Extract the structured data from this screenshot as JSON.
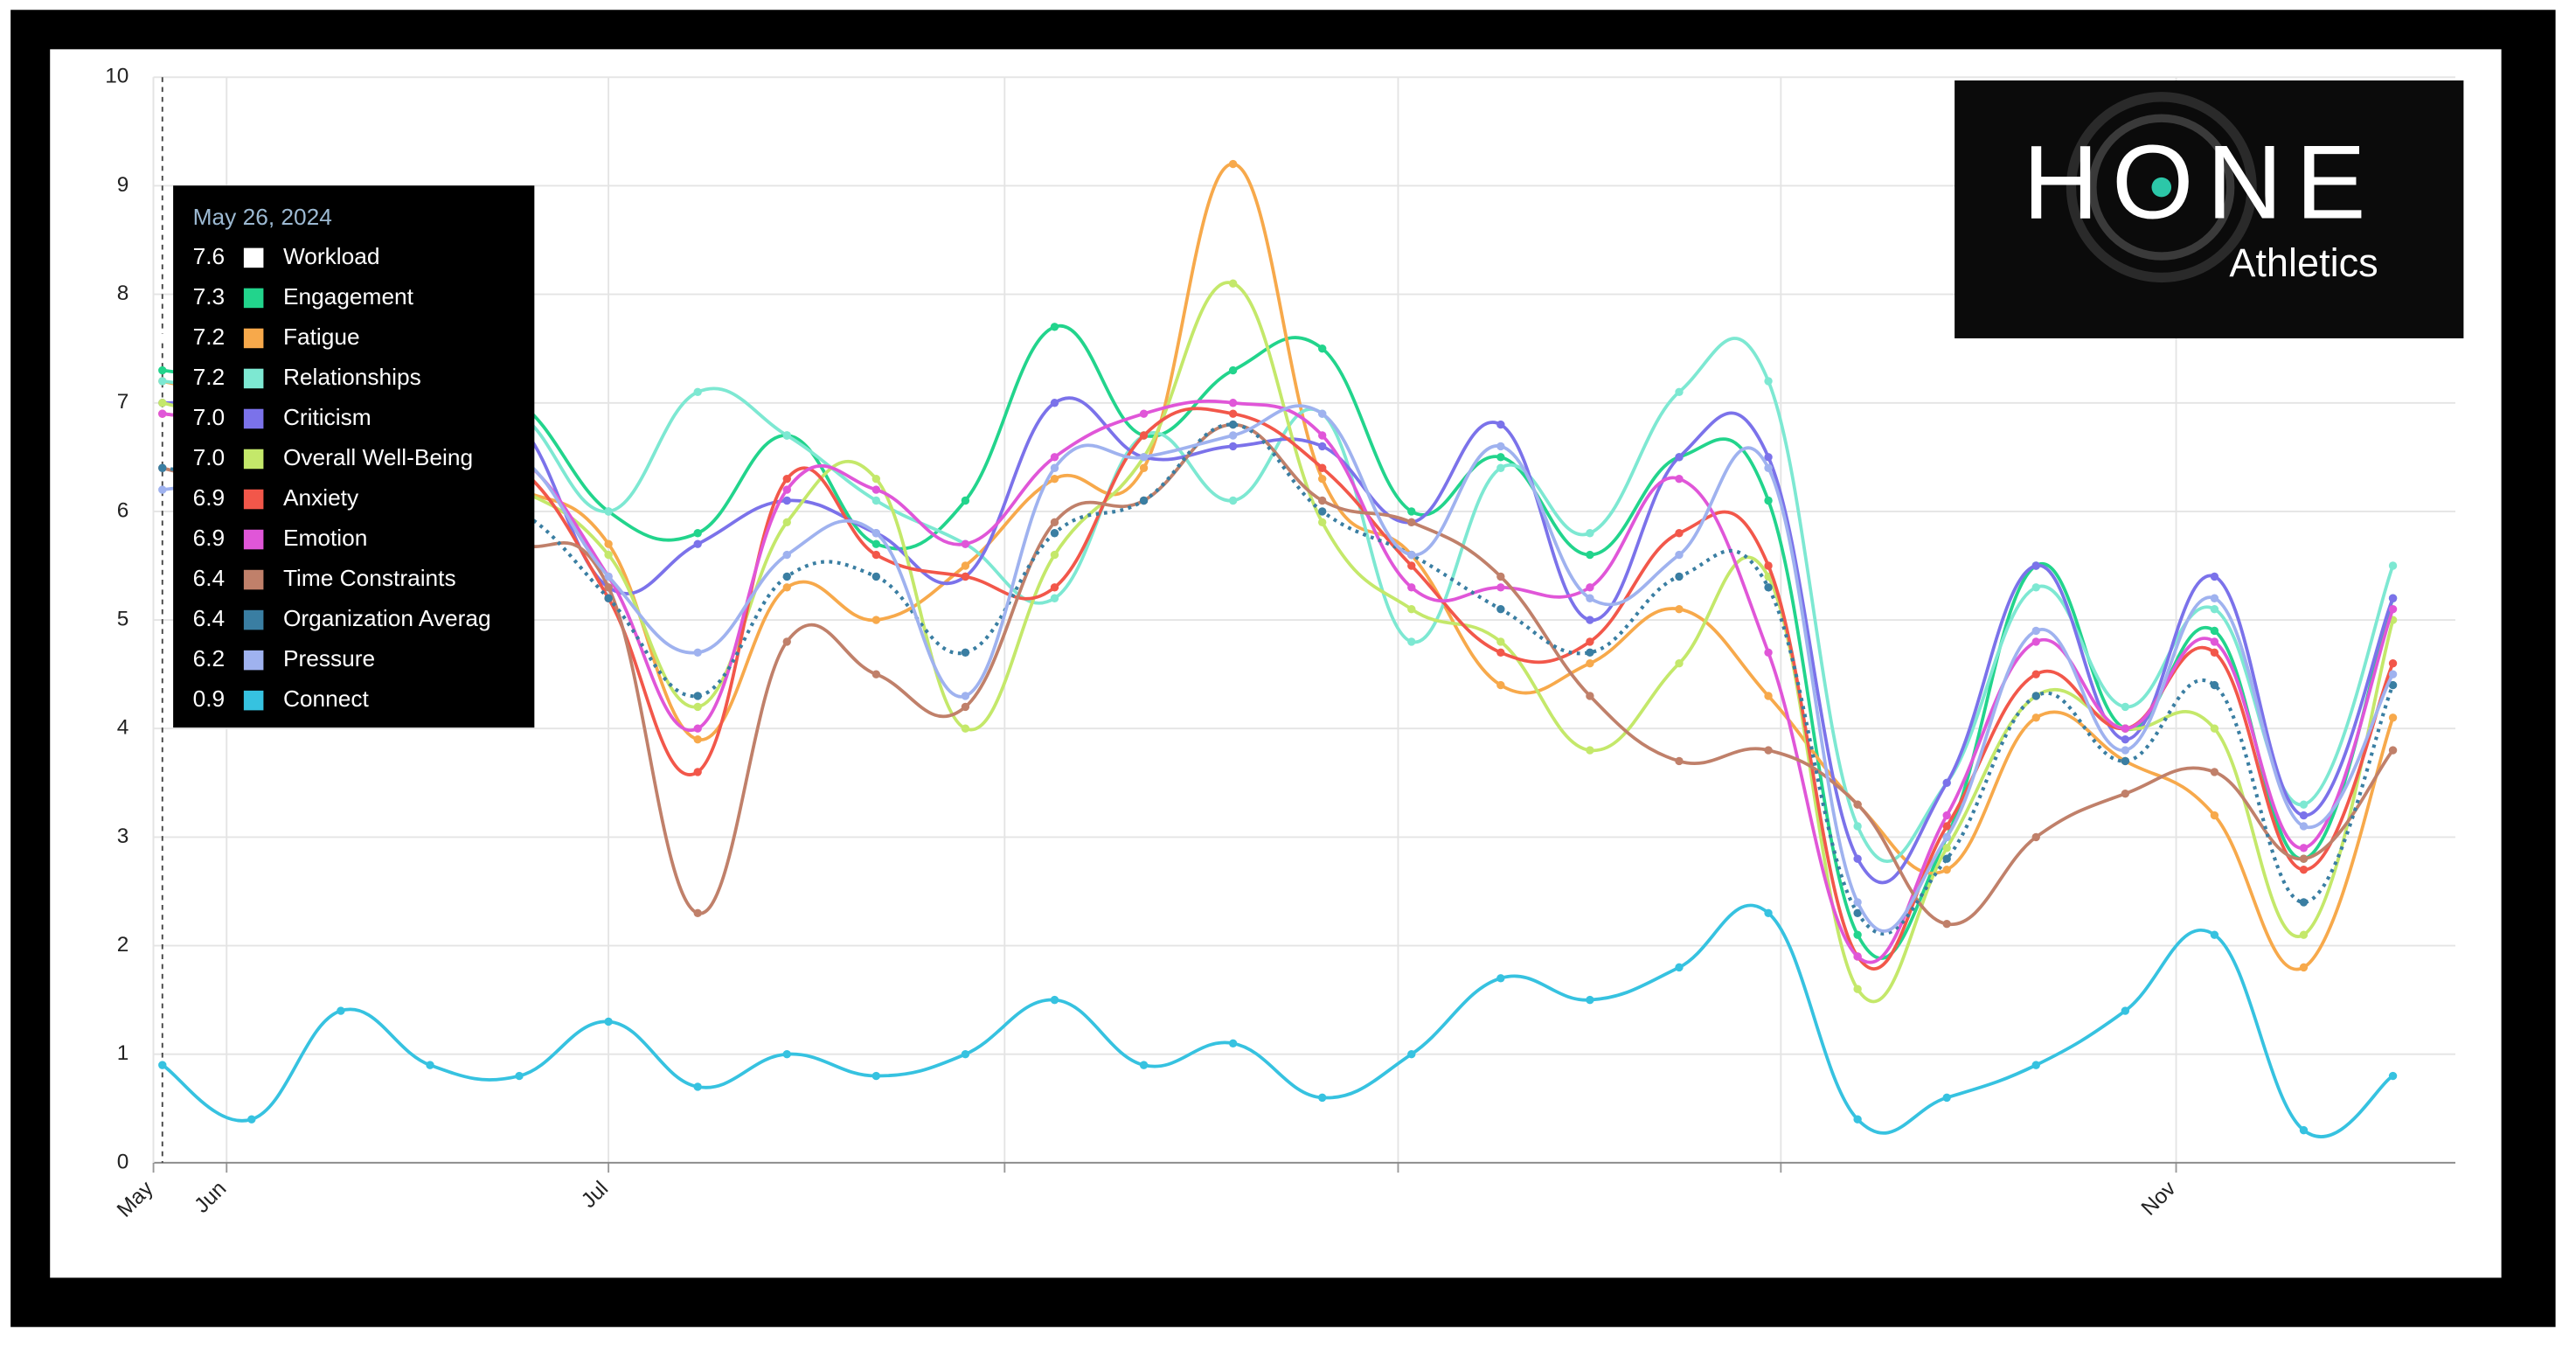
{
  "chart_data": {
    "type": "line",
    "logo": {
      "title": "HONE",
      "subtitle": "Athletics"
    },
    "categories": [
      null,
      null,
      null,
      null,
      null,
      null,
      null,
      null,
      null,
      null,
      null,
      null,
      null,
      null,
      null,
      null,
      null,
      null,
      null,
      null,
      null,
      null,
      null,
      null,
      null,
      null
    ],
    "xlim": [
      -0.1,
      25.7
    ],
    "xticks": [
      {
        "value": -0.1,
        "label": "May"
      },
      {
        "value": 0.72,
        "label": "Jun"
      },
      {
        "value": 5.0,
        "label": "Jul"
      },
      {
        "value": 9.44,
        "label": null
      },
      {
        "value": 13.85,
        "label": null
      },
      {
        "value": 18.14,
        "label": null
      },
      {
        "value": 22.57,
        "label": "Nov"
      }
    ],
    "ylim": [
      0,
      10
    ],
    "yticks": [
      0,
      1,
      2,
      3,
      4,
      5,
      6,
      7,
      8,
      9,
      10
    ],
    "grid": true,
    "tooltip": {
      "title": "May 26, 2024",
      "value_labels": [
        "7.6",
        "7.3",
        "7.2",
        "7.2",
        "7.0",
        "7.0",
        "6.9",
        "6.9",
        "6.4",
        "6.4",
        "6.2",
        "0.9"
      ]
    },
    "series": [
      {
        "name": "Workload",
        "color": "#ffffff",
        "values": [
          7.6,
          null,
          null,
          null,
          null,
          null,
          null,
          null,
          null,
          null,
          null,
          null,
          null,
          null,
          null,
          null,
          null,
          null,
          null,
          null,
          null,
          null,
          null,
          null,
          null,
          null
        ]
      },
      {
        "name": "Engagement",
        "color": "#22d48c",
        "values": [
          7.3,
          7.2,
          7.2,
          7.1,
          7.0,
          6.0,
          5.8,
          6.7,
          5.7,
          6.1,
          7.7,
          6.7,
          7.3,
          7.5,
          6.0,
          6.5,
          5.6,
          6.5,
          6.1,
          2.1,
          3.0,
          5.5,
          4.0,
          4.9,
          2.8,
          5.2
        ]
      },
      {
        "name": "Fatigue",
        "color": "#f7a94b",
        "values": [
          7.2,
          7.0,
          6.7,
          6.4,
          6.2,
          5.7,
          3.9,
          5.3,
          5.0,
          5.5,
          6.3,
          6.4,
          9.2,
          6.3,
          5.6,
          4.4,
          4.6,
          5.1,
          4.3,
          3.3,
          2.7,
          4.1,
          3.7,
          3.2,
          1.8,
          4.1
        ]
      },
      {
        "name": "Relationships",
        "color": "#7de8d2",
        "values": [
          7.2,
          7.1,
          7.0,
          7.0,
          6.9,
          6.0,
          7.1,
          6.7,
          6.1,
          5.7,
          5.2,
          6.7,
          6.1,
          6.9,
          4.8,
          6.4,
          5.8,
          7.1,
          7.2,
          3.1,
          3.5,
          5.3,
          4.2,
          5.1,
          3.3,
          5.5
        ]
      },
      {
        "name": "Criticism",
        "color": "#7b72ea",
        "values": [
          7.0,
          7.0,
          6.9,
          6.9,
          6.8,
          5.3,
          5.7,
          6.1,
          5.8,
          5.4,
          7.0,
          6.5,
          6.6,
          6.6,
          5.9,
          6.8,
          5.0,
          6.5,
          6.5,
          2.8,
          3.5,
          5.5,
          3.9,
          5.4,
          3.2,
          5.2
        ]
      },
      {
        "name": "Overall Well-Being",
        "color": "#c4e86a",
        "values": [
          7.0,
          6.8,
          6.6,
          6.4,
          6.2,
          5.6,
          4.2,
          5.9,
          6.3,
          4.0,
          5.6,
          6.5,
          8.1,
          5.9,
          5.1,
          4.8,
          3.8,
          4.6,
          5.4,
          1.6,
          2.9,
          4.3,
          4.0,
          4.0,
          2.1,
          5.0
        ]
      },
      {
        "name": "Anxiety",
        "color": "#f2574a",
        "values": [
          6.9,
          6.8,
          6.7,
          6.5,
          6.4,
          5.2,
          3.6,
          6.3,
          5.6,
          5.4,
          5.3,
          6.7,
          6.9,
          6.4,
          5.5,
          4.7,
          4.8,
          5.8,
          5.5,
          1.9,
          3.1,
          4.5,
          4.0,
          4.7,
          2.7,
          4.6
        ]
      },
      {
        "name": "Emotion",
        "color": "#e056d8",
        "values": [
          6.9,
          6.8,
          6.7,
          6.6,
          6.5,
          5.4,
          4.0,
          6.2,
          6.2,
          5.7,
          6.5,
          6.9,
          7.0,
          6.7,
          5.3,
          5.3,
          5.3,
          6.3,
          4.7,
          1.9,
          3.2,
          4.8,
          4.0,
          4.8,
          2.9,
          5.1
        ]
      },
      {
        "name": "Time Constraints",
        "color": "#c0806a",
        "values": [
          6.4,
          6.2,
          6.1,
          5.9,
          5.7,
          5.3,
          2.3,
          4.8,
          4.5,
          4.2,
          5.9,
          6.1,
          6.8,
          6.1,
          5.9,
          5.4,
          4.3,
          3.7,
          3.8,
          3.3,
          2.2,
          3.0,
          3.4,
          3.6,
          2.8,
          3.8
        ]
      },
      {
        "name": "Organization Averag",
        "color": "#3a7ea2",
        "dashed": true,
        "values": [
          6.4,
          6.3,
          6.2,
          6.1,
          6.0,
          5.2,
          4.3,
          5.4,
          5.4,
          4.7,
          5.8,
          6.1,
          6.8,
          6.0,
          5.6,
          5.1,
          4.7,
          5.4,
          5.3,
          2.3,
          2.8,
          4.3,
          3.7,
          4.4,
          2.4,
          4.4
        ]
      },
      {
        "name": "Pressure",
        "color": "#9fb2ef",
        "values": [
          6.2,
          6.3,
          6.4,
          6.4,
          6.5,
          5.4,
          4.7,
          5.6,
          5.8,
          4.3,
          6.4,
          6.5,
          6.7,
          6.9,
          5.6,
          6.6,
          5.2,
          5.6,
          6.4,
          2.4,
          3.0,
          4.9,
          3.8,
          5.2,
          3.1,
          4.5
        ]
      },
      {
        "name": "Connect",
        "color": "#36c2e0",
        "values": [
          0.9,
          0.4,
          1.4,
          0.9,
          0.8,
          1.3,
          0.7,
          1.0,
          0.8,
          1.0,
          1.5,
          0.9,
          1.1,
          0.6,
          1.0,
          1.7,
          1.5,
          1.8,
          2.3,
          0.4,
          0.6,
          0.9,
          1.4,
          2.1,
          0.3,
          0.8
        ]
      }
    ]
  }
}
